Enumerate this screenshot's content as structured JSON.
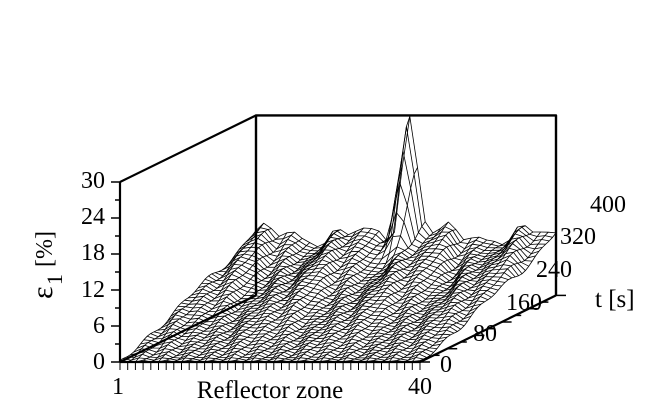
{
  "chart_data": {
    "type": "surface",
    "title": "",
    "xlabel": "Reflector zone",
    "ylabel": "t [s]",
    "zlabel_main": "ε",
    "zlabel_sub": "1",
    "zlabel_unit": "[%]",
    "x_range": [
      1,
      40
    ],
    "x_ticks": [
      "1",
      "40"
    ],
    "y_range": [
      0,
      400
    ],
    "y_ticks": [
      "0",
      "80",
      "160",
      "240",
      "320",
      "400"
    ],
    "z_range": [
      0,
      30
    ],
    "z_ticks": [
      "0",
      "6",
      "12",
      "18",
      "24",
      "30"
    ],
    "approx_surface": {
      "description_values": "ε1 grows from 0 at t=0 to about 8-12 % at t=400 across zones; sharp peak near zone 21 at t≈400",
      "baseline_max_percent": 10,
      "peak": {
        "zone": 21,
        "t": 400,
        "value_percent": 28
      }
    },
    "grid": true
  }
}
